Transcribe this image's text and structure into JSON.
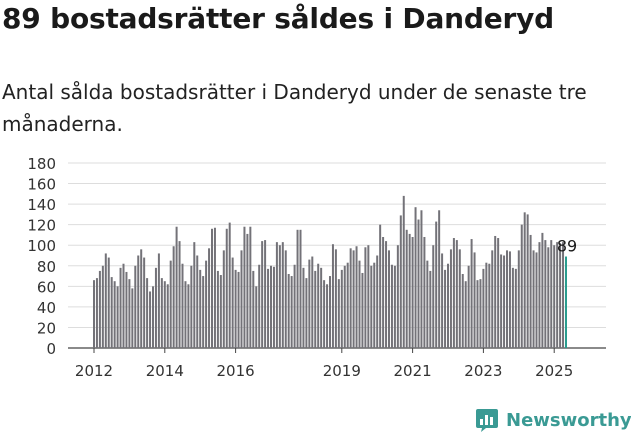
{
  "title": "89 bostadsrätter såldes i Danderyd",
  "subtitle": "Antal sålda bostadsrätter i Danderyd under de senaste tre månaderna.",
  "brand": {
    "name": "Newsworthy",
    "icon": "newsworthy-logo-icon",
    "color": "#3a9a94"
  },
  "chart_data": {
    "type": "bar",
    "title": "",
    "xlabel": "",
    "ylabel": "",
    "ylim": [
      0,
      180
    ],
    "yticks": [
      "0",
      "20",
      "40",
      "60",
      "80",
      "100",
      "120",
      "140",
      "160",
      "180"
    ],
    "xticks": [
      {
        "label": "2012",
        "index": 0
      },
      {
        "label": "2014",
        "index": 24
      },
      {
        "label": "2016",
        "index": 48
      },
      {
        "label": "2019",
        "index": 84
      },
      {
        "label": "2021",
        "index": 108
      },
      {
        "label": "2023",
        "index": 132
      },
      {
        "label": "2025",
        "index": 156
      }
    ],
    "grid": true,
    "bar_color": "#737278",
    "highlight_color": "#2a9d8f",
    "start": "2011-12",
    "values": [
      66,
      68,
      75,
      80,
      92,
      88,
      69,
      65,
      60,
      78,
      82,
      74,
      67,
      58,
      80,
      90,
      96,
      88,
      68,
      55,
      60,
      78,
      92,
      68,
      65,
      62,
      85,
      99,
      118,
      104,
      82,
      65,
      62,
      80,
      103,
      90,
      76,
      70,
      85,
      97,
      116,
      117,
      75,
      71,
      95,
      116,
      122,
      88,
      76,
      74,
      95,
      118,
      111,
      118,
      75,
      60,
      81,
      104,
      105,
      77,
      80,
      79,
      103,
      100,
      103,
      95,
      72,
      70,
      81,
      115,
      115,
      78,
      68,
      86,
      89,
      75,
      82,
      78,
      66,
      62,
      70,
      101,
      96,
      67,
      76,
      80,
      83,
      97,
      95,
      99,
      85,
      73,
      98,
      100,
      80,
      83,
      90,
      120,
      108,
      104,
      95,
      81,
      80,
      100,
      129,
      148,
      115,
      111,
      108,
      137,
      125,
      134,
      108,
      85,
      75,
      100,
      123,
      134,
      92,
      76,
      82,
      96,
      107,
      105,
      96,
      72,
      65,
      80,
      106,
      93,
      66,
      67,
      77,
      83,
      82,
      95,
      109,
      107,
      91,
      90,
      95,
      94,
      78,
      77,
      95,
      120,
      132,
      130,
      110,
      95,
      93,
      103,
      112,
      105,
      98,
      105,
      100,
      103,
      102,
      103,
      89
    ],
    "last_value_label": "89"
  }
}
